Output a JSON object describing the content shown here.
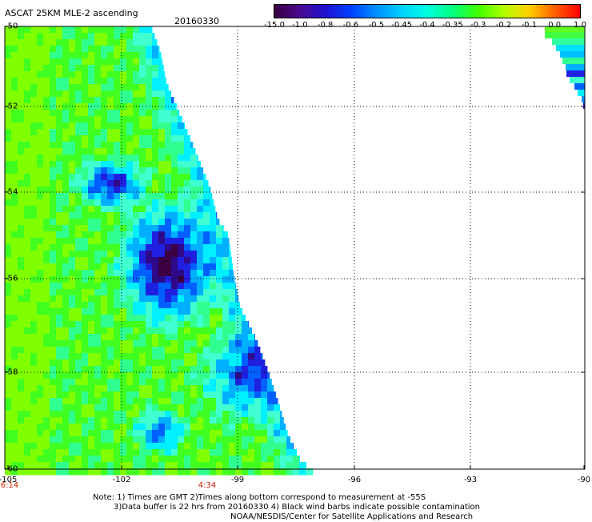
{
  "title": "ASCAT 25KM MLE-2 ascending",
  "date": "20160330",
  "colorbar": {
    "labels": [
      "-15.0",
      "-1.0",
      "-0.8",
      "-0.6",
      "-0.5",
      "-0.45",
      "-0.4",
      "-0.35",
      "-0.3",
      "-0.2",
      "-0.1",
      "0.0",
      "1.0"
    ],
    "colors": [
      "#3a0040",
      "#4a0a90",
      "#2010d0",
      "#0040ff",
      "#0090ff",
      "#00d0ff",
      "#00ffe0",
      "#00ff80",
      "#40ff00",
      "#b0ff00",
      "#ffd000",
      "#ff6000",
      "#ff0000"
    ]
  },
  "axes": {
    "y_ticks": [
      "-50",
      "-52",
      "-54",
      "-56",
      "-58",
      "-60"
    ],
    "x_ticks": [
      "-105",
      "-102",
      "-99",
      "-96",
      "-93",
      "-90"
    ]
  },
  "times": {
    "left": "6:14",
    "mid": "4:34"
  },
  "notes": {
    "line1": "Note: 1) Times are GMT 2)Times along bottom correspond to measurement at -55S",
    "line2": "3)Data buffer is 22 hrs from 20160330 4) Black wind barbs indicate possible contamination",
    "line3": "NOAA/NESDIS/Center for Satellite Applications and Research"
  }
}
